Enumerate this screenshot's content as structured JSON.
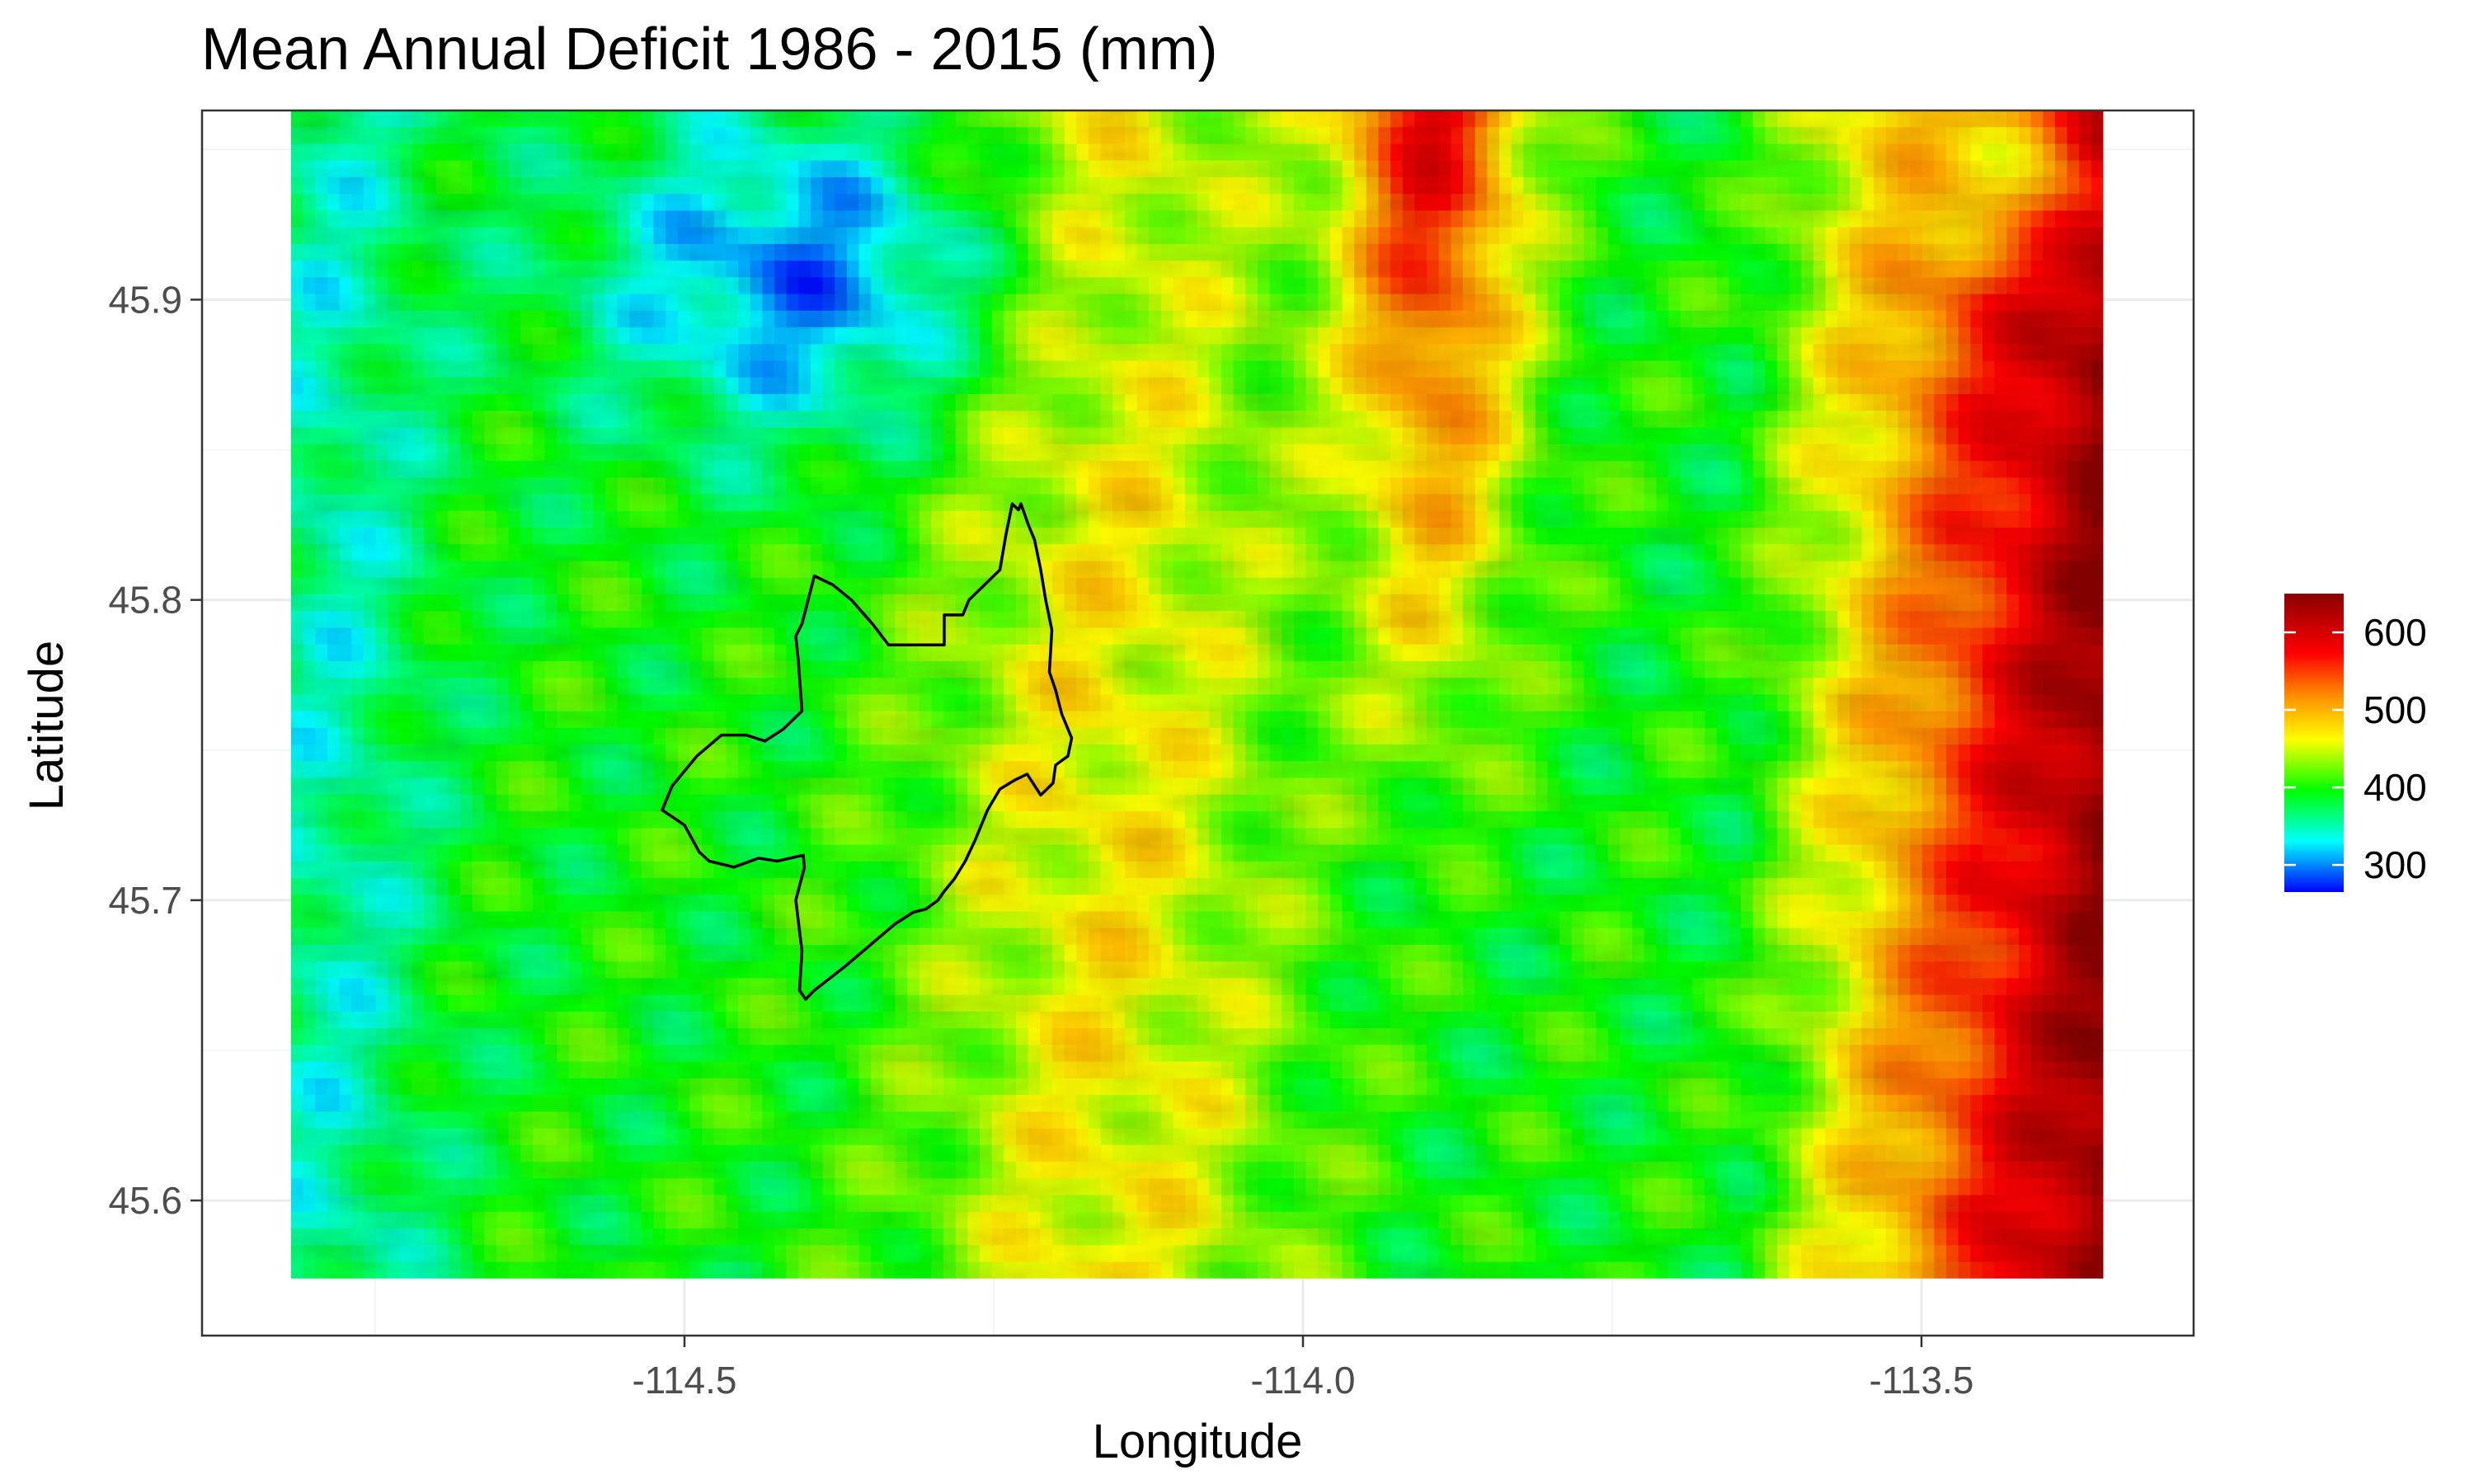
{
  "chart_data": {
    "type": "heatmap",
    "title": "Mean Annual Deficit 1986 - 2015 (mm)",
    "xlabel": "Longitude",
    "ylabel": "Latitude",
    "xlim": [
      -114.89,
      -113.28
    ],
    "ylim": [
      45.555,
      45.963
    ],
    "x_ticks": [
      -114.5,
      -114.0,
      -113.5
    ],
    "x_tick_labels": [
      "-114.5",
      "-114.0",
      "-113.5"
    ],
    "y_ticks": [
      45.6,
      45.7,
      45.8,
      45.9
    ],
    "y_tick_labels": [
      "45.6",
      "45.7",
      "45.8",
      "45.9"
    ],
    "raster_extent": {
      "lon": [
        -114.818,
        -113.353
      ],
      "lat": [
        45.574,
        45.963
      ]
    },
    "colorbar": {
      "range": [
        265,
        650
      ],
      "ticks": [
        300,
        400,
        500,
        600
      ],
      "tick_labels": [
        "300",
        "400",
        "500",
        "600"
      ],
      "colors": [
        "#0000ff",
        "#00ffff",
        "#00ff00",
        "#ffff00",
        "#ff8c00",
        "#ff0000",
        "#8b0000"
      ],
      "placement": "right"
    },
    "grid": true,
    "boundary_polygon": {
      "lon": [
        -114.395,
        -114.38,
        -114.365,
        -114.348,
        -114.335,
        -114.31,
        -114.29,
        -114.29,
        -114.275,
        -114.27,
        -114.245,
        -114.24,
        -114.235,
        -114.23,
        -114.228,
        -114.222,
        -114.217,
        -114.212,
        -114.208,
        -114.203,
        -114.205,
        -114.2,
        -114.195,
        -114.187,
        -114.19,
        -114.2,
        -114.202,
        -114.212,
        -114.223,
        -114.233,
        -114.245,
        -114.255,
        -114.265,
        -114.273,
        -114.282,
        -114.29,
        -114.295,
        -114.305,
        -114.315,
        -114.33,
        -114.35,
        -114.37,
        -114.395,
        -114.402,
        -114.407,
        -114.405,
        -114.41,
        -114.403,
        -114.404,
        -114.425,
        -114.44,
        -114.46,
        -114.48,
        -114.488,
        -114.5,
        -114.518,
        -114.51,
        -114.49,
        -114.47,
        -114.45,
        -114.435,
        -114.42,
        -114.405,
        -114.408,
        -114.41,
        -114.405,
        -114.395
      ],
      "lat": [
        45.808,
        45.805,
        45.8,
        45.792,
        45.785,
        45.785,
        45.785,
        45.795,
        45.795,
        45.8,
        45.81,
        45.822,
        45.832,
        45.83,
        45.832,
        45.825,
        45.82,
        45.81,
        45.8,
        45.79,
        45.776,
        45.77,
        45.762,
        45.754,
        45.748,
        45.745,
        45.739,
        45.735,
        45.742,
        45.74,
        45.737,
        45.73,
        45.72,
        45.713,
        45.707,
        45.703,
        45.7,
        45.697,
        45.696,
        45.692,
        45.685,
        45.678,
        45.67,
        45.667,
        45.67,
        45.683,
        45.7,
        45.711,
        45.715,
        45.713,
        45.714,
        45.711,
        45.713,
        45.716,
        45.725,
        45.73,
        45.738,
        45.748,
        45.755,
        45.755,
        45.753,
        45.757,
        45.763,
        45.78,
        45.788,
        45.792,
        45.808
      ]
    }
  }
}
